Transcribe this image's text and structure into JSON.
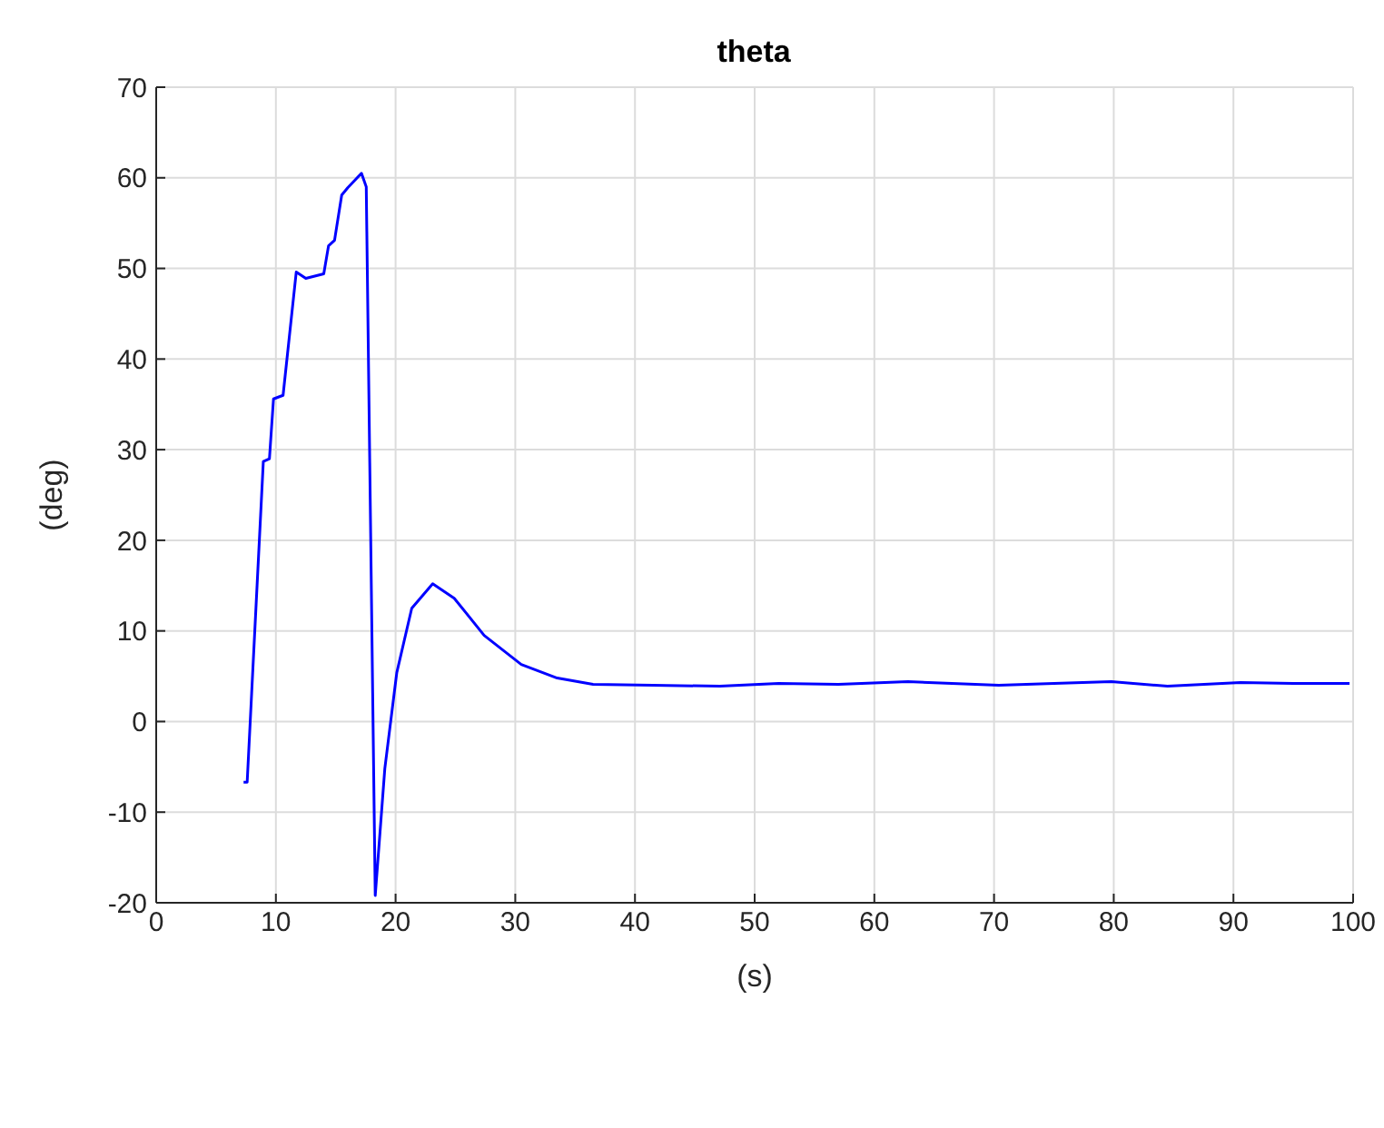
{
  "chart_data": {
    "type": "line",
    "title": "theta",
    "xlabel": "(s)",
    "ylabel": "(deg)",
    "xlim": [
      0,
      100
    ],
    "xticks": [
      0,
      10,
      20,
      30,
      40,
      50,
      60,
      70,
      80,
      90,
      100
    ],
    "ylim": [
      -20,
      70
    ],
    "yticks": [
      -20,
      -10,
      0,
      10,
      20,
      30,
      40,
      50,
      60,
      70
    ],
    "grid": true,
    "marker": "none",
    "line_style": "solid",
    "series": [
      {
        "color": "#0000ff",
        "x": [
          7.3,
          7.6,
          8.95,
          9.46,
          9.8,
          10.6,
          11.7,
          12.5,
          14.0,
          14.4,
          14.9,
          15.5,
          16.0,
          17.15,
          17.55,
          18.3,
          19.1,
          20.1,
          21.35,
          23.1,
          24.9,
          27.4,
          30.5,
          33.5,
          36.5,
          41.5,
          47.1,
          52,
          57,
          62.8,
          70.4,
          75,
          79.8,
          84.5,
          90.6,
          95,
          99.7
        ],
        "values": [
          -6.7,
          -6.7,
          28.7,
          29,
          35.6,
          36,
          49.6,
          48.9,
          49.4,
          52.5,
          53.1,
          58.1,
          58.9,
          60.5,
          59,
          -19.2,
          -5.2,
          5.4,
          12.5,
          15.2,
          13.6,
          9.5,
          6.3,
          4.8,
          4.1,
          4.0,
          3.9,
          4.2,
          4.1,
          4.4,
          4.0,
          4.2,
          4.4,
          3.9,
          4.3,
          4.2,
          4.2
        ]
      }
    ]
  }
}
